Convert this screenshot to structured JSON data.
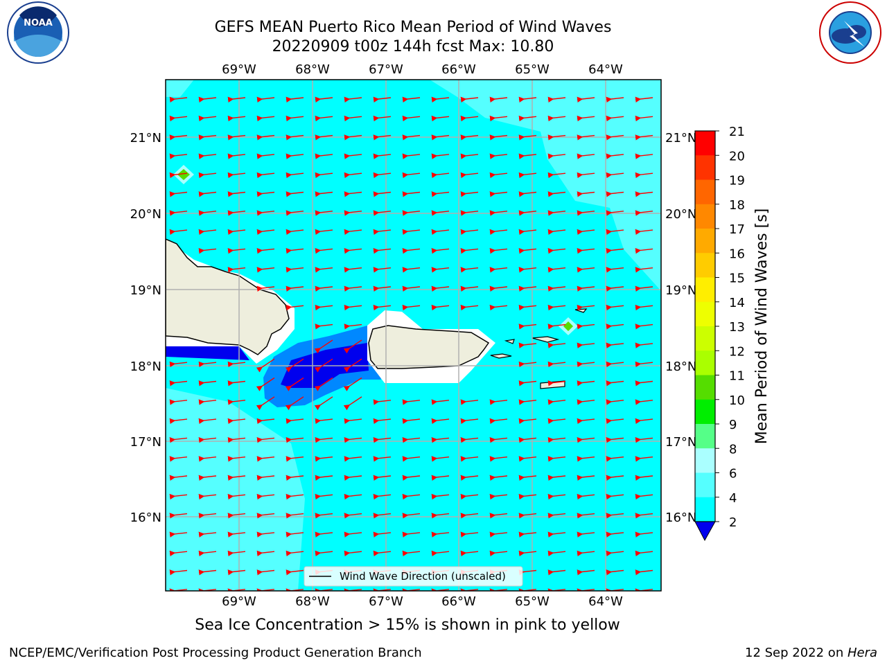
{
  "header": {
    "title_line1": "GEFS MEAN Puerto Rico Mean Period of Wind Waves",
    "title_line2": "20220909 t00z 144h fcst   Max: 10.80",
    "left_logo_text": "NOAA",
    "left_logo_ring": "NATIONAL OCEANIC AND ATMOSPHERIC ADMINISTRATION · U.S. DEPARTMENT OF COMMERCE",
    "right_logo_ring": "NATIONAL WEATHER SERVICE"
  },
  "map": {
    "lon_labels": [
      "69°W",
      "68°W",
      "67°W",
      "66°W",
      "65°W",
      "64°W"
    ],
    "lat_labels": [
      "21°N",
      "20°N",
      "19°N",
      "18°N",
      "17°N",
      "16°N"
    ],
    "legend_label": "Wind Wave Direction (unscaled)",
    "arrow_color": "#ff0000",
    "ocean_color": "#00ffff",
    "land_color": "#eeeedd"
  },
  "colorbar": {
    "label": "Mean Period of Wind Waves [s]",
    "ticks": [
      "21",
      "20",
      "19",
      "18",
      "17",
      "16",
      "15",
      "14",
      "13",
      "12",
      "11",
      "10",
      "9",
      "8",
      "6",
      "4",
      "2"
    ],
    "colors": [
      "#ff0000",
      "#ff3300",
      "#ff6600",
      "#ff8800",
      "#ffaa00",
      "#ffcc00",
      "#ffee00",
      "#eeff00",
      "#ccff00",
      "#aaff00",
      "#55dd00",
      "#00ee00",
      "#55ff88",
      "#aaffff",
      "#55ffff",
      "#00ffff",
      "#0088ff",
      "#0000ee"
    ]
  },
  "footer": {
    "caption": "Sea Ice Concentration > 15% is shown in pink to yellow",
    "left": "NCEP/EMC/Verification Post Processing Product Generation Branch",
    "date": "12 Sep 2022 on ",
    "machine": "Hera"
  }
}
